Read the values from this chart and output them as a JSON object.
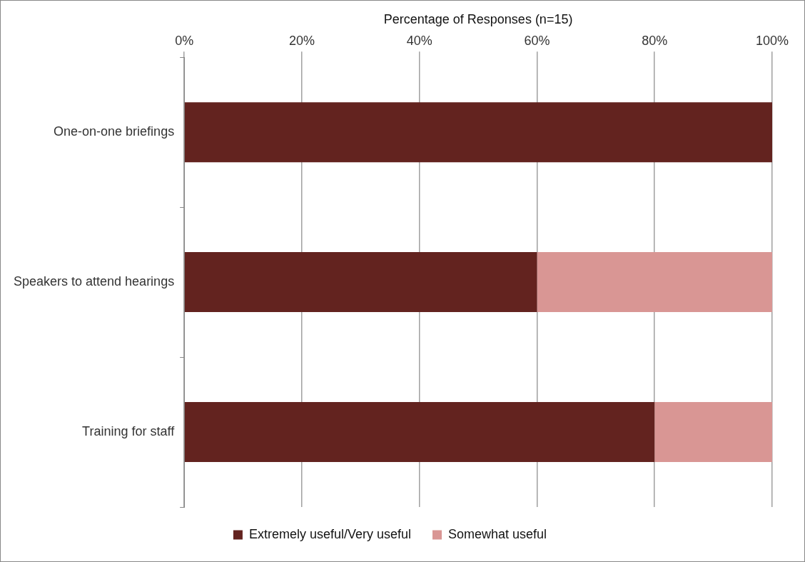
{
  "chart_data": {
    "type": "bar",
    "orientation": "horizontal",
    "stacked": true,
    "xlabel": "Percentage of Responses (n=15)",
    "categories": [
      "One-on-one briefings",
      "Speakers to attend hearings",
      "Training for staff"
    ],
    "series": [
      {
        "name": "Extremely useful/Very useful",
        "color": "#63231f",
        "values": [
          100,
          60,
          80
        ]
      },
      {
        "name": "Somewhat useful",
        "color": "#d99694",
        "values": [
          0,
          40,
          20
        ]
      }
    ],
    "xlim": [
      0,
      100
    ],
    "xticks": [
      {
        "value": 0,
        "label": "0%"
      },
      {
        "value": 20,
        "label": "20%"
      },
      {
        "value": 40,
        "label": "40%"
      },
      {
        "value": 60,
        "label": "60%"
      },
      {
        "value": 80,
        "label": "80%"
      },
      {
        "value": 100,
        "label": "100%"
      }
    ],
    "grid": "x",
    "legend": "bottom"
  }
}
